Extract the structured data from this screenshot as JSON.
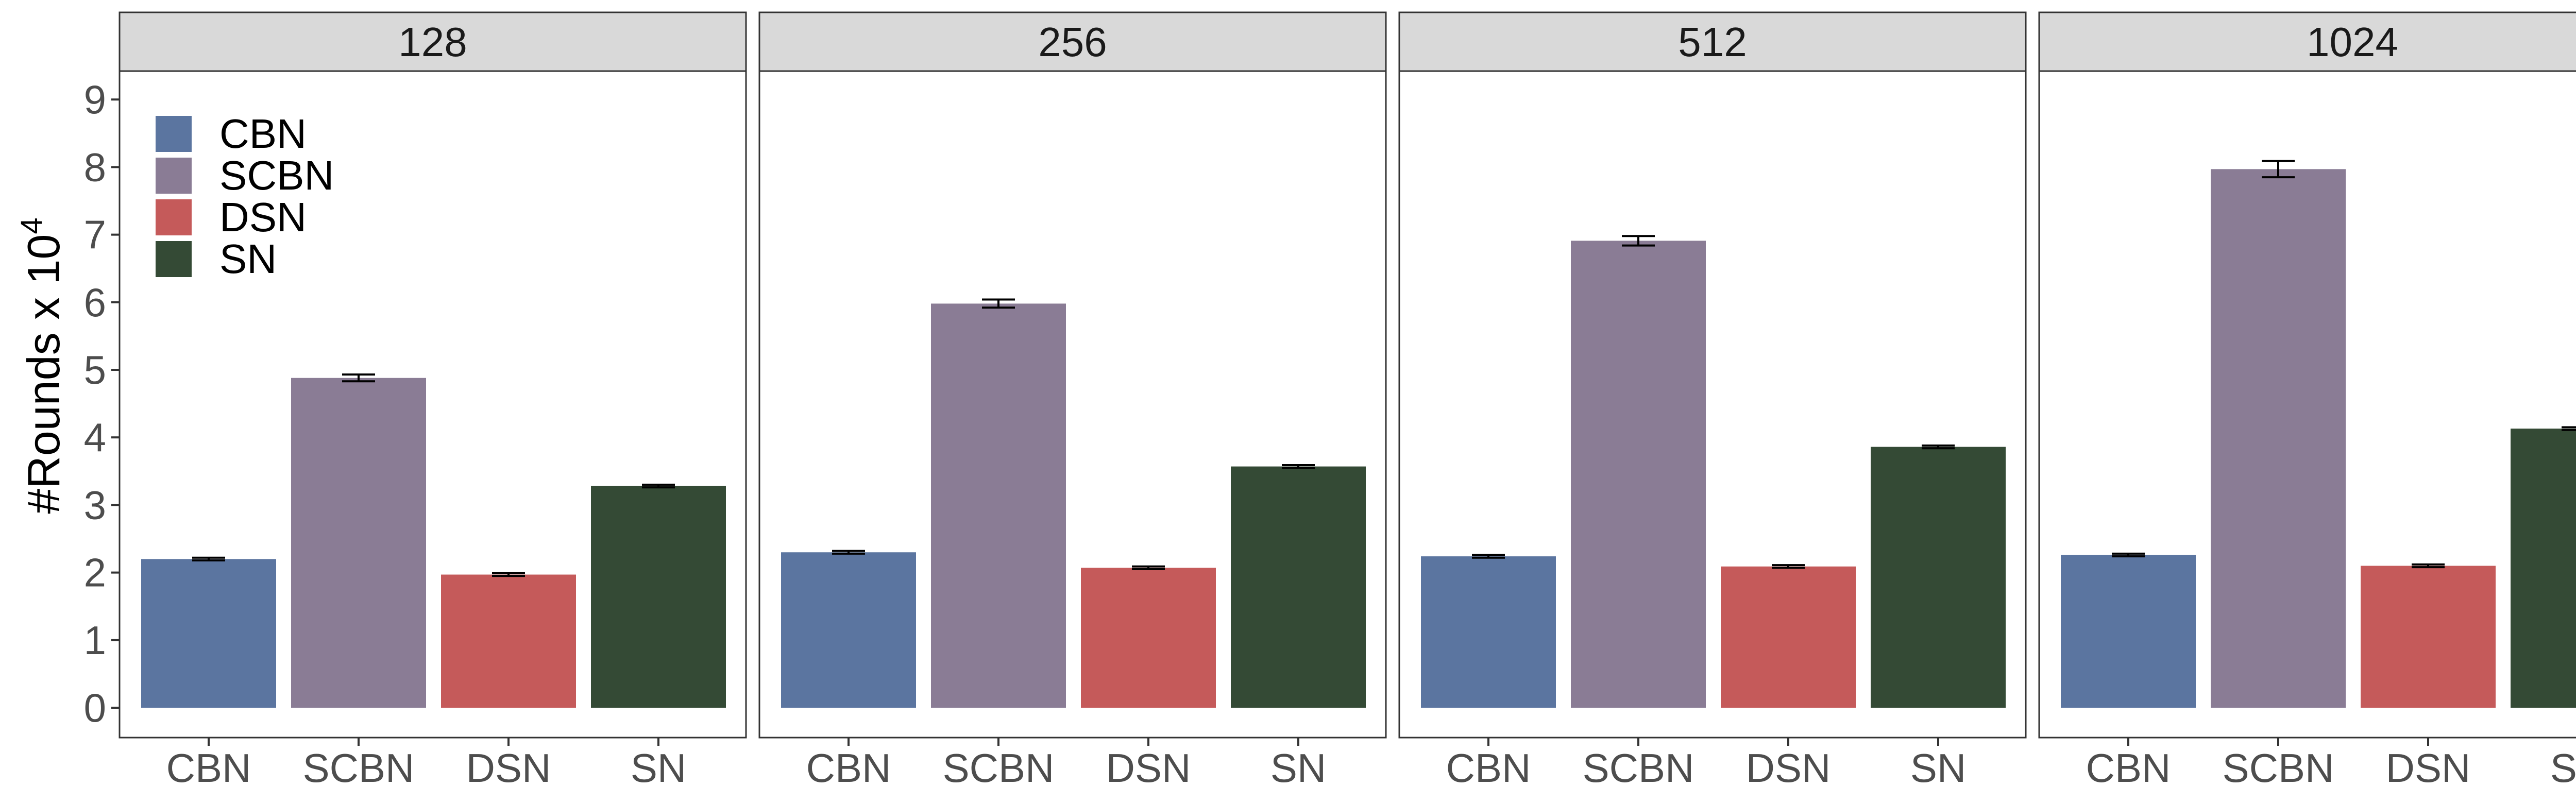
{
  "chart_data": {
    "type": "bar",
    "ylabel": "#Rounds x 10",
    "ylabel_exponent": "4",
    "ylim": [
      0,
      9
    ],
    "yticks": [
      "0",
      "1",
      "2",
      "3",
      "4",
      "5",
      "6",
      "7",
      "8",
      "9"
    ],
    "categories": [
      "CBN",
      "SCBN",
      "DSN",
      "SN"
    ],
    "colors": [
      "#5b75a0",
      "#8a7c95",
      "#c55a5a",
      "#344a35"
    ],
    "legend": {
      "position": "top-left",
      "entries": [
        "CBN",
        "SCBN",
        "DSN",
        "SN"
      ]
    },
    "grid": false,
    "panels": [
      {
        "title": "128",
        "values": [
          2.2,
          4.88,
          1.97,
          3.28
        ],
        "errors": [
          0.02,
          0.05,
          0.02,
          0.02
        ]
      },
      {
        "title": "256",
        "values": [
          2.3,
          5.98,
          2.07,
          3.57
        ],
        "errors": [
          0.02,
          0.06,
          0.02,
          0.02
        ]
      },
      {
        "title": "512",
        "values": [
          2.24,
          6.91,
          2.09,
          3.86
        ],
        "errors": [
          0.02,
          0.07,
          0.02,
          0.02
        ]
      },
      {
        "title": "1024",
        "values": [
          2.26,
          7.97,
          2.1,
          4.13
        ],
        "errors": [
          0.02,
          0.12,
          0.02,
          0.02
        ]
      }
    ]
  }
}
